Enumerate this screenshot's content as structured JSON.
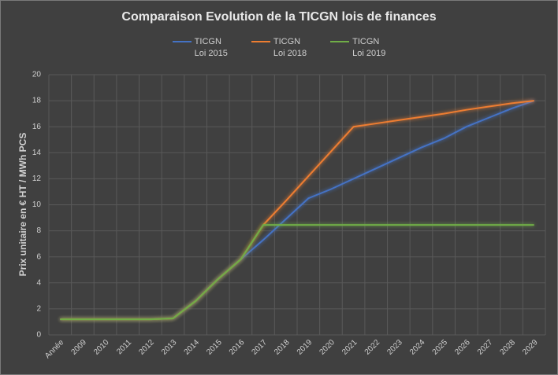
{
  "chart_data": {
    "type": "line",
    "title": "Comparaison Evolution de la TICGN lois de finances",
    "y_label": "Prix unitaire en € HT / MWh PCS",
    "categories": [
      "Année",
      "2009",
      "2010",
      "2011",
      "2012",
      "2013",
      "2014",
      "2015",
      "2016",
      "2017",
      "2018",
      "2019",
      "2020",
      "2021",
      "2022",
      "2023",
      "2024",
      "2025",
      "2026",
      "2027",
      "2028",
      "2029"
    ],
    "series": [
      {
        "name": "TICGN\nLoi 2015",
        "color": "#4472c4",
        "values": [
          1.2,
          1.2,
          1.2,
          1.2,
          1.2,
          1.27,
          2.6,
          4.3,
          5.8,
          7.3,
          8.9,
          10.5,
          11.2,
          12.0,
          12.8,
          13.6,
          14.4,
          15.1,
          16.0,
          16.7,
          17.4,
          18.0
        ]
      },
      {
        "name": "TICGN\nLoi 2018",
        "color": "#ed7d31",
        "values": [
          1.2,
          1.2,
          1.2,
          1.2,
          1.2,
          1.27,
          2.6,
          4.3,
          5.8,
          8.45,
          10.3,
          12.2,
          14.1,
          16.0,
          16.25,
          16.5,
          16.75,
          17.0,
          17.3,
          17.55,
          17.8,
          18.0
        ]
      },
      {
        "name": "TICGN\nLoi 2019",
        "color": "#70ad47",
        "values": [
          1.2,
          1.2,
          1.2,
          1.2,
          1.2,
          1.27,
          2.6,
          4.3,
          5.8,
          8.45,
          8.45,
          8.45,
          8.45,
          8.45,
          8.45,
          8.45,
          8.45,
          8.45,
          8.45,
          8.45,
          8.45,
          8.45
        ]
      }
    ],
    "ylim": [
      0,
      20
    ],
    "yticks": [
      0,
      2,
      4,
      6,
      8,
      10,
      12,
      14,
      16,
      18,
      20
    ],
    "grid": true
  }
}
